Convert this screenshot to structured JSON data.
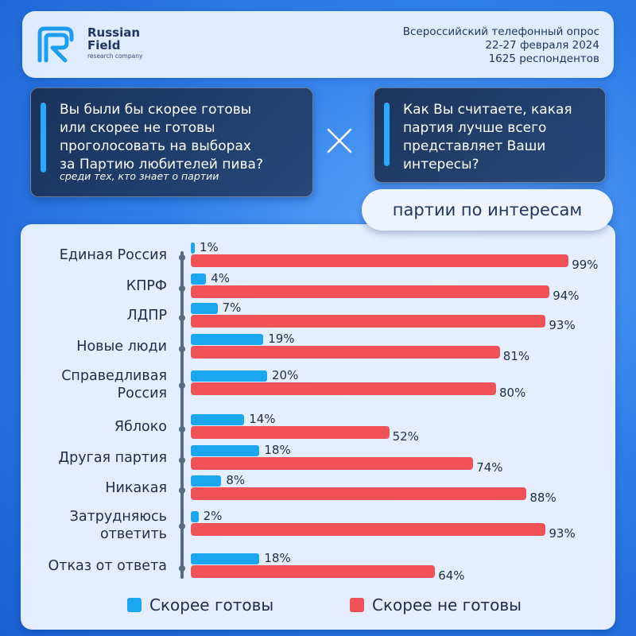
{
  "header": {
    "brand_line1": "Russian",
    "brand_line2": "Field",
    "brand_line3": "research company",
    "survey_lines": [
      "Всероссийский телефонный опрос",
      "22-27 февраля 2024",
      "1625 респондентов"
    ]
  },
  "question_left": {
    "text": "Вы были бы скорее готовы или скорее не готовы проголосовать на выборах за Партию любителей пива?",
    "lines": [
      "Вы были бы скорее готовы",
      "или скорее не готовы",
      "проголосовать на выборах",
      "за Партию любителей пива?"
    ],
    "subtitle": "среди тех, кто знает о партии"
  },
  "question_right": {
    "lines": [
      "Как Вы считаете, какая",
      "партия лучше всего",
      "представляет Ваши",
      "интересы?"
    ]
  },
  "section_tag": "партии по интересам",
  "colors": {
    "ready": "#1ba6f0",
    "not_ready": "#f05258",
    "accent": "#29a8ff"
  },
  "chart_data": {
    "type": "bar",
    "orientation": "horizontal",
    "categories": [
      "Единая Россия",
      "КПРФ",
      "ЛДПР",
      "Новые люди",
      "Справедливая Россия",
      "Яблоко",
      "Другая партия",
      "Никакая",
      "Затрудняюсь ответить",
      "Отказ от ответа"
    ],
    "category_lines": [
      [
        "Единая Россия"
      ],
      [
        "КПРФ"
      ],
      [
        "ЛДПР"
      ],
      [
        "Новые люди"
      ],
      [
        "Справедливая",
        "Россия"
      ],
      [
        "Яблоко"
      ],
      [
        "Другая партия"
      ],
      [
        "Никакая"
      ],
      [
        "Затрудняюсь",
        "ответить"
      ],
      [
        "Отказ от ответа"
      ]
    ],
    "series": [
      {
        "name": "Скорее готовы",
        "values": [
          1,
          4,
          7,
          19,
          20,
          14,
          18,
          8,
          2,
          18
        ]
      },
      {
        "name": "Скорее не готовы",
        "values": [
          99,
          94,
          93,
          81,
          80,
          52,
          74,
          88,
          93,
          64
        ]
      }
    ],
    "value_labels": {
      "ready": [
        "1%",
        "4%",
        "7%",
        "19%",
        "20%",
        "14%",
        "18%",
        "8%",
        "2%",
        "18%"
      ],
      "not_ready": [
        "99%",
        "94%",
        "93%",
        "81%",
        "80%",
        "52%",
        "74%",
        "88%",
        "93%",
        "64%"
      ]
    },
    "xlim": [
      0,
      100
    ],
    "legend": {
      "position": "bottom",
      "items": [
        "Скорее готовы",
        "Скорее не готовы"
      ]
    }
  }
}
